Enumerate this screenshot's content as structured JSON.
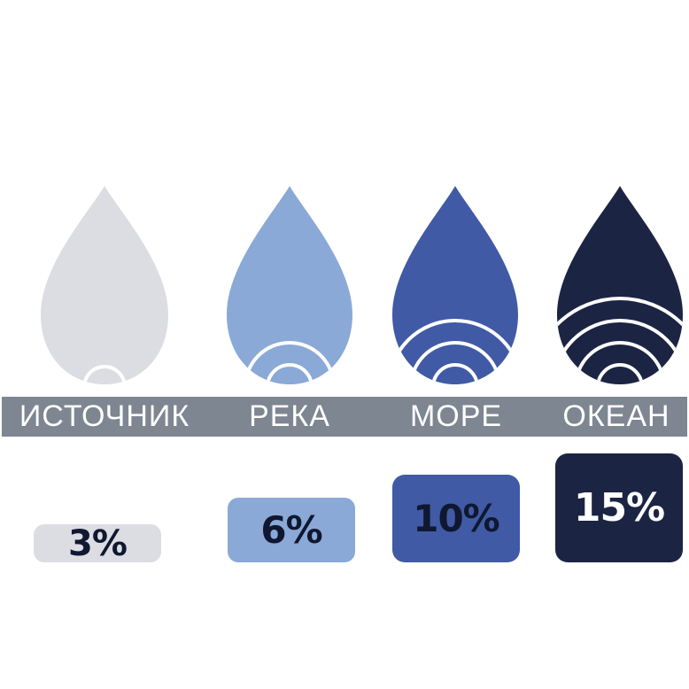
{
  "colors": {
    "band": "#7d8691",
    "band_text": "#ffffff",
    "ring_stroke": "#ffffff",
    "dark_text": "#0f1830",
    "light_text": "#ffffff"
  },
  "items": [
    {
      "label": "ИСТОЧНИК",
      "value": "3%",
      "rings": 1,
      "color": "#dcdde3",
      "text_color": "#0f1830"
    },
    {
      "label": "РЕКА",
      "value": "6%",
      "rings": 2,
      "color": "#8aa9d7",
      "text_color": "#0f1830"
    },
    {
      "label": "МОРЕ",
      "value": "10%",
      "rings": 3,
      "color": "#405aa5",
      "text_color": "#0f1830"
    },
    {
      "label": "ОКЕАН",
      "value": "15%",
      "rings": 4,
      "color": "#1c2443",
      "text_color": "#ffffff"
    }
  ]
}
